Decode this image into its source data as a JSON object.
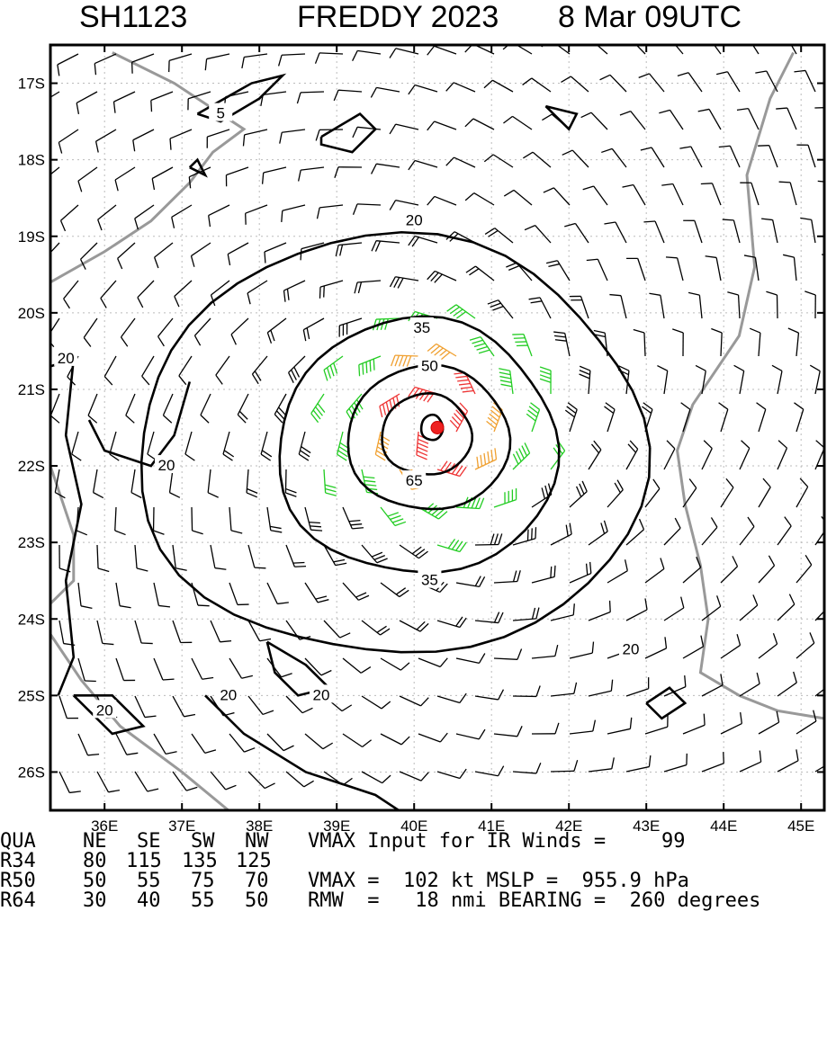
{
  "title": {
    "storm_id": "SH1123",
    "storm_name_year": "FREDDY 2023",
    "datetime": "8 Mar 09UTC"
  },
  "chart_data": {
    "type": "contour",
    "x_ticks": [
      "36E",
      "37E",
      "38E",
      "39E",
      "40E",
      "41E",
      "42E",
      "43E",
      "44E",
      "45E"
    ],
    "y_ticks": [
      "17S",
      "18S",
      "19S",
      "20S",
      "21S",
      "22S",
      "23S",
      "24S",
      "25S",
      "26S"
    ],
    "xlim": [
      35.3,
      45.3
    ],
    "ylim": [
      -26.5,
      -16.5
    ],
    "grid": true,
    "center": {
      "lon": 40.3,
      "lat": -21.5
    },
    "contour_levels_kt": [
      5,
      20,
      35,
      50,
      65
    ],
    "barb_colors": {
      "below34": "#000000",
      "gale": "#22cc22",
      "storm": "#f0a030",
      "hurricane": "#ee3333"
    },
    "contour_labels": [
      {
        "text": "5",
        "lon": 37.5,
        "lat": -17.4
      },
      {
        "text": "20",
        "lon": 40.0,
        "lat": -18.8
      },
      {
        "text": "20",
        "lon": 35.5,
        "lat": -20.6
      },
      {
        "text": "20",
        "lon": 36.8,
        "lat": -22.0
      },
      {
        "text": "20",
        "lon": 42.8,
        "lat": -24.4
      },
      {
        "text": "20",
        "lon": 38.8,
        "lat": -25.0
      },
      {
        "text": "20",
        "lon": 37.6,
        "lat": -25.0
      },
      {
        "text": "20",
        "lon": 36.0,
        "lat": -25.2
      },
      {
        "text": "35",
        "lon": 40.1,
        "lat": -20.2
      },
      {
        "text": "35",
        "lon": 40.2,
        "lat": -23.5
      },
      {
        "text": "50",
        "lon": 40.2,
        "lat": -20.7
      },
      {
        "text": "65",
        "lon": 40.0,
        "lat": -22.2
      }
    ]
  },
  "table": {
    "header": [
      "QUA",
      "NE",
      "SE",
      "SW",
      "NW"
    ],
    "rows": [
      [
        "R34",
        "80",
        "115",
        "135",
        "125"
      ],
      [
        "R50",
        "50",
        "55",
        "75",
        "70"
      ],
      [
        "R64",
        "30",
        "40",
        "55",
        "50"
      ]
    ]
  },
  "info": {
    "vmax_input_label": "VMAX Input for IR Winds =",
    "vmax_input_value": "99",
    "vmax_line": "VMAX =  102 kt MSLP =  955.9 hPa",
    "rmw_line": "RMW  =   18 nmi BEARING =  260 degrees"
  }
}
